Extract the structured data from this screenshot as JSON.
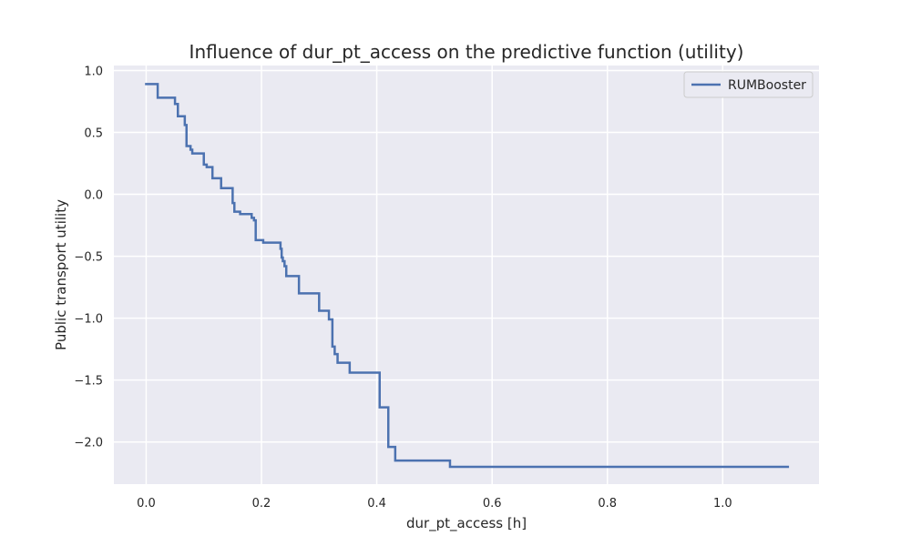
{
  "chart_data": {
    "type": "line",
    "title": "Influence of dur_pt_access on the predictive function (utility)",
    "xlabel": "dur_pt_access [h]",
    "ylabel": "Public transport utility",
    "xlim": [
      -0.056,
      1.167
    ],
    "ylim": [
      -2.34,
      1.04
    ],
    "xticks": [
      0.0,
      0.2,
      0.4,
      0.6,
      0.8,
      1.0
    ],
    "xtick_labels": [
      "0.0",
      "0.2",
      "0.4",
      "0.6",
      "0.8",
      "1.0"
    ],
    "yticks": [
      1.0,
      0.5,
      0.0,
      -0.5,
      -1.0,
      -1.5,
      -2.0
    ],
    "ytick_labels": [
      "1.0",
      "0.5",
      "0.0",
      "−0.5",
      "−1.0",
      "−1.5",
      "−2.0"
    ],
    "grid": true,
    "legend_position": "top-right",
    "series": [
      {
        "name": "RUMBooster",
        "color": "#4c72b0",
        "step": "post",
        "x": [
          0.0,
          0.02,
          0.05,
          0.055,
          0.067,
          0.07,
          0.077,
          0.08,
          0.09,
          0.1,
          0.105,
          0.115,
          0.13,
          0.148,
          0.15,
          0.153,
          0.163,
          0.183,
          0.187,
          0.19,
          0.203,
          0.233,
          0.235,
          0.237,
          0.24,
          0.243,
          0.265,
          0.3,
          0.317,
          0.323,
          0.327,
          0.332,
          0.353,
          0.405,
          0.42,
          0.432,
          0.527,
          1.113
        ],
        "y": [
          0.89,
          0.78,
          0.73,
          0.63,
          0.56,
          0.39,
          0.36,
          0.33,
          0.33,
          0.24,
          0.22,
          0.13,
          0.05,
          0.05,
          -0.07,
          -0.14,
          -0.16,
          -0.19,
          -0.21,
          -0.37,
          -0.39,
          -0.44,
          -0.51,
          -0.54,
          -0.58,
          -0.66,
          -0.8,
          -0.94,
          -1.01,
          -1.23,
          -1.29,
          -1.36,
          -1.44,
          -1.72,
          -2.04,
          -2.15,
          -2.2,
          -2.2
        ]
      }
    ]
  }
}
